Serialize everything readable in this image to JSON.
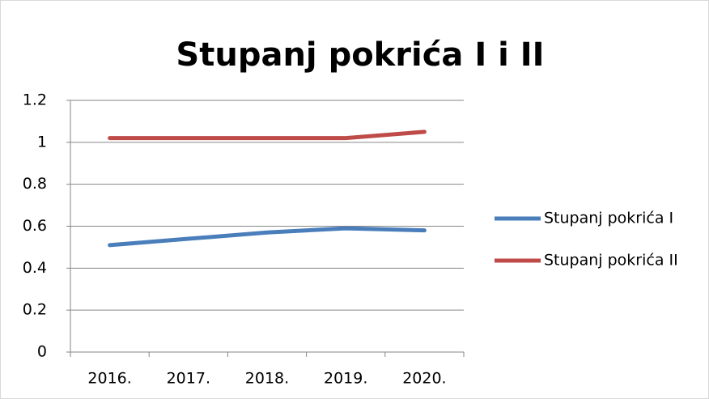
{
  "chart_data": {
    "type": "line",
    "title": "Stupanj pokrića I i II",
    "categories": [
      "2016.",
      "2017.",
      "2018.",
      "2019.",
      "2020."
    ],
    "series": [
      {
        "name": "Stupanj pokrića I",
        "color": "#4a7ebb",
        "values": [
          0.51,
          0.54,
          0.57,
          0.59,
          0.58
        ]
      },
      {
        "name": "Stupanj pokrića II",
        "color": "#be4b48",
        "values": [
          1.02,
          1.02,
          1.02,
          1.02,
          1.05
        ]
      }
    ],
    "ylim": [
      0,
      1.2
    ],
    "yticks": [
      0,
      0.2,
      0.4,
      0.6,
      0.8,
      1,
      1.2
    ],
    "grid": true,
    "legend": "right"
  }
}
